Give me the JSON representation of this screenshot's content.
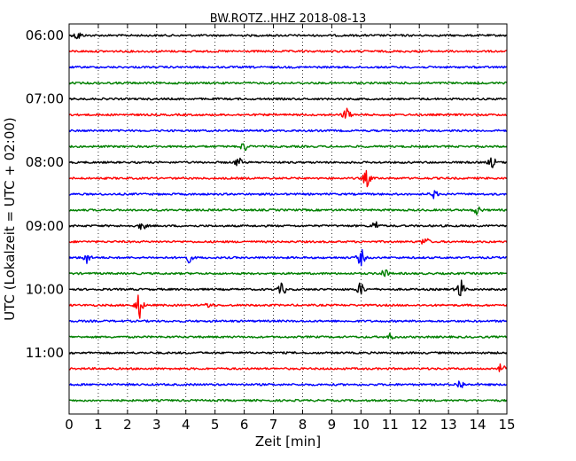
{
  "chart_data": {
    "type": "line",
    "title": "BW.ROTZ..HHZ 2018-08-13",
    "xlabel": "Zeit  [min]",
    "ylabel": "UTC (Lokalzeit = UTC + 02:00)",
    "xlim": [
      0,
      15
    ],
    "x_ticks": [
      0,
      1,
      2,
      3,
      4,
      5,
      6,
      7,
      8,
      9,
      10,
      11,
      12,
      13,
      14,
      15
    ],
    "y_tick_labels": [
      "06:00",
      "07:00",
      "08:00",
      "09:00",
      "10:00",
      "11:00"
    ],
    "grid": "vertical dotted",
    "trace_colors": [
      "#000000",
      "#ff0000",
      "#0000ff",
      "#008000"
    ],
    "series": [
      {
        "start": "06:00",
        "color": "#000000",
        "events": [
          {
            "t": 0.3,
            "amp": 0.3
          }
        ]
      },
      {
        "start": "06:15",
        "color": "#ff0000",
        "events": []
      },
      {
        "start": "06:30",
        "color": "#0000ff",
        "events": []
      },
      {
        "start": "06:45",
        "color": "#008000",
        "events": []
      },
      {
        "start": "07:00",
        "color": "#000000",
        "events": []
      },
      {
        "start": "07:15",
        "color": "#ff0000",
        "events": [
          {
            "t": 9.5,
            "amp": 0.45
          }
        ]
      },
      {
        "start": "07:30",
        "color": "#0000ff",
        "events": []
      },
      {
        "start": "07:45",
        "color": "#008000",
        "events": [
          {
            "t": 6.0,
            "amp": 0.3
          }
        ]
      },
      {
        "start": "08:00",
        "color": "#000000",
        "events": [
          {
            "t": 5.8,
            "amp": 0.3
          },
          {
            "t": 14.5,
            "amp": 0.35
          }
        ]
      },
      {
        "start": "08:15",
        "color": "#ff0000",
        "events": [
          {
            "t": 10.2,
            "amp": 0.55
          }
        ]
      },
      {
        "start": "08:30",
        "color": "#0000ff",
        "events": [
          {
            "t": 12.5,
            "amp": 0.25
          }
        ]
      },
      {
        "start": "08:45",
        "color": "#008000",
        "events": [
          {
            "t": 14.0,
            "amp": 0.3
          }
        ]
      },
      {
        "start": "09:00",
        "color": "#000000",
        "events": [
          {
            "t": 2.5,
            "amp": 0.25
          },
          {
            "t": 10.5,
            "amp": 0.3
          }
        ]
      },
      {
        "start": "09:15",
        "color": "#ff0000",
        "events": [
          {
            "t": 12.2,
            "amp": 0.3
          }
        ]
      },
      {
        "start": "09:30",
        "color": "#0000ff",
        "events": [
          {
            "t": 0.6,
            "amp": 0.4
          },
          {
            "t": 4.1,
            "amp": 0.3
          },
          {
            "t": 10.0,
            "amp": 0.55
          }
        ]
      },
      {
        "start": "09:45",
        "color": "#008000",
        "events": [
          {
            "t": 10.8,
            "amp": 0.3
          }
        ]
      },
      {
        "start": "10:00",
        "color": "#000000",
        "events": [
          {
            "t": 7.3,
            "amp": 0.4
          },
          {
            "t": 10.0,
            "amp": 0.45
          },
          {
            "t": 13.4,
            "amp": 0.7
          }
        ]
      },
      {
        "start": "10:15",
        "color": "#ff0000",
        "events": [
          {
            "t": 2.4,
            "amp": 0.9
          },
          {
            "t": 4.8,
            "amp": 0.2
          }
        ]
      },
      {
        "start": "10:30",
        "color": "#0000ff",
        "events": []
      },
      {
        "start": "10:45",
        "color": "#008000",
        "events": [
          {
            "t": 11.0,
            "amp": 0.2
          }
        ]
      },
      {
        "start": "11:00",
        "color": "#000000",
        "events": []
      },
      {
        "start": "11:15",
        "color": "#ff0000",
        "events": [
          {
            "t": 14.8,
            "amp": 0.3
          }
        ]
      },
      {
        "start": "11:30",
        "color": "#0000ff",
        "events": [
          {
            "t": 13.4,
            "amp": 0.3
          }
        ]
      },
      {
        "start": "11:45",
        "color": "#008000",
        "events": []
      }
    ]
  }
}
